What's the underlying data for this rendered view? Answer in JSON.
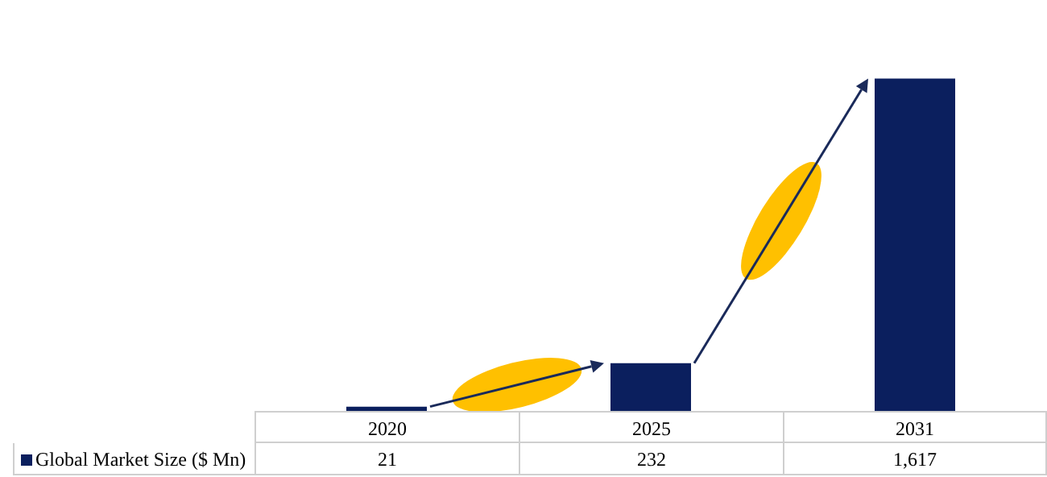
{
  "chart_data": {
    "type": "bar",
    "categories": [
      "2020",
      "2025",
      "2031"
    ],
    "series": [
      {
        "name": "Global Market Size ($ Mn)",
        "color": "#0b1f5e",
        "values": [
          21,
          232,
          1617
        ],
        "value_labels": [
          "21",
          "232",
          "1,617"
        ]
      }
    ],
    "legend": "bottom left"
  }
}
